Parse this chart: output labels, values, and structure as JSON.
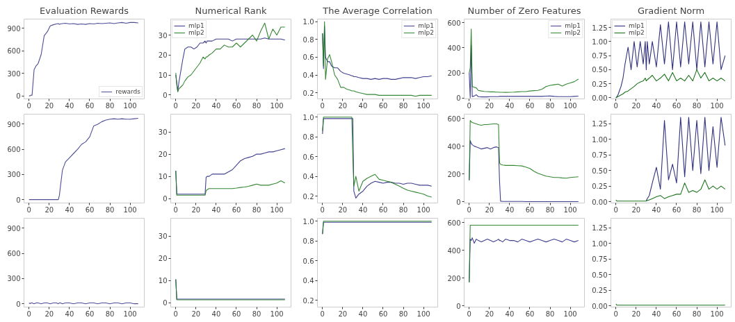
{
  "chart_data": [
    {
      "type": "line",
      "title": "Evaluation Rewards",
      "x": [
        0,
        1,
        2,
        3,
        5,
        7,
        9,
        12,
        15,
        18,
        21,
        24,
        27,
        29,
        30,
        31,
        33,
        36,
        40,
        44,
        48,
        52,
        56,
        60,
        64,
        68,
        72,
        76,
        80,
        84,
        88,
        92,
        96,
        100,
        104,
        108
      ],
      "xlim": [
        -5,
        114
      ],
      "xticks": [
        0,
        20,
        40,
        60,
        80,
        100
      ],
      "ylim": [
        -40,
        1020
      ],
      "yticks": [
        0,
        300,
        600,
        900
      ],
      "legend": "bottom right",
      "grid": false,
      "series": [
        {
          "name": "rewards",
          "color": "#3a3a8c",
          "values": [
            0,
            0,
            10,
            10,
            350,
            400,
            430,
            550,
            800,
            850,
            930,
            945,
            955,
            960,
            950,
            955,
            960,
            965,
            955,
            960,
            950,
            955,
            950,
            960,
            955,
            965,
            960,
            965,
            970,
            960,
            970,
            975,
            965,
            975,
            975,
            970
          ]
        }
      ]
    },
    {
      "type": "line",
      "title": "Numerical Rank",
      "x": [
        0,
        1,
        2,
        3,
        5,
        7,
        9,
        12,
        15,
        18,
        21,
        24,
        27,
        29,
        30,
        31,
        33,
        36,
        40,
        44,
        48,
        52,
        56,
        60,
        64,
        68,
        72,
        76,
        80,
        84,
        88,
        92,
        96,
        100,
        104,
        108
      ],
      "xlim": [
        -5,
        114
      ],
      "xticks": [
        0,
        20,
        40,
        60,
        80,
        100
      ],
      "ylim": [
        -2,
        38
      ],
      "yticks": [
        0,
        10,
        20,
        30
      ],
      "legend": "top left",
      "grid": false,
      "series": [
        {
          "name": "mlp1",
          "color": "#2b2b85",
          "values": [
            10,
            6,
            2,
            6,
            12,
            18,
            23,
            24,
            24,
            23,
            24,
            26,
            26,
            27,
            26,
            27,
            27,
            27,
            28,
            28,
            28,
            28,
            27,
            28,
            28,
            28,
            28,
            28,
            28,
            28,
            28.5,
            28,
            28,
            28,
            28,
            27.5
          ]
        },
        {
          "name": "mlp2",
          "color": "#1e7a1e",
          "values": [
            11,
            5,
            1.5,
            3,
            4,
            5,
            7,
            9,
            10,
            12,
            14,
            16,
            19,
            18,
            19,
            19,
            20,
            21,
            23,
            23,
            25,
            24,
            24,
            26,
            24,
            26,
            28,
            30,
            27,
            32,
            36,
            28,
            33,
            30,
            34,
            34
          ]
        }
      ]
    },
    {
      "type": "line",
      "title": "The Average Correlation",
      "x": [
        0,
        1,
        2,
        3,
        5,
        7,
        9,
        12,
        15,
        18,
        21,
        24,
        27,
        29,
        30,
        31,
        33,
        36,
        40,
        44,
        48,
        52,
        56,
        60,
        64,
        68,
        72,
        76,
        80,
        84,
        88,
        92,
        96,
        100,
        104,
        108
      ],
      "xlim": [
        -5,
        114
      ],
      "xticks": [
        0,
        20,
        40,
        60,
        80,
        100
      ],
      "ylim": [
        0.13,
        1.03
      ],
      "yticks": [
        {
          "value": 0.2,
          "label": "0.2"
        },
        {
          "value": 0.4,
          "label": "0.4"
        },
        {
          "value": 0.6,
          "label": "0.6"
        },
        {
          "value": 0.8,
          "label": "0.8"
        },
        {
          "value": 1,
          "label": "1.0"
        }
      ],
      "legend": "top right",
      "grid": false,
      "series": [
        {
          "name": "mlp1",
          "color": "#2b2b85",
          "values": [
            0.87,
            0.47,
            0.95,
            0.6,
            0.55,
            0.55,
            0.5,
            0.48,
            0.48,
            0.44,
            0.42,
            0.41,
            0.4,
            0.39,
            0.39,
            0.38,
            0.38,
            0.37,
            0.36,
            0.36,
            0.35,
            0.36,
            0.35,
            0.36,
            0.36,
            0.35,
            0.35,
            0.36,
            0.37,
            0.37,
            0.37,
            0.36,
            0.37,
            0.38,
            0.38,
            0.39
          ]
        },
        {
          "name": "mlp2",
          "color": "#1e7a1e",
          "values": [
            0.87,
            0.5,
            1.0,
            0.35,
            0.58,
            0.63,
            0.55,
            0.4,
            0.35,
            0.26,
            0.26,
            0.24,
            0.23,
            0.22,
            0.22,
            0.22,
            0.21,
            0.2,
            0.19,
            0.18,
            0.18,
            0.18,
            0.17,
            0.17,
            0.17,
            0.17,
            0.17,
            0.17,
            0.17,
            0.17,
            0.17,
            0.16,
            0.17,
            0.17,
            0.17,
            0.17
          ]
        }
      ]
    },
    {
      "type": "line",
      "title": "Number of Zero Features",
      "x": [
        0,
        1,
        2,
        3,
        5,
        7,
        9,
        12,
        15,
        18,
        21,
        24,
        27,
        29,
        30,
        31,
        33,
        36,
        40,
        44,
        48,
        52,
        56,
        60,
        64,
        68,
        72,
        76,
        80,
        84,
        88,
        92,
        96,
        100,
        104,
        108
      ],
      "xlim": [
        -5,
        114
      ],
      "xticks": [
        0,
        20,
        40,
        60,
        80,
        100
      ],
      "ylim": [
        -8,
        630
      ],
      "yticks": [
        0,
        200,
        400,
        600
      ],
      "legend": "top right",
      "grid": false,
      "series": [
        {
          "name": "mlp1",
          "color": "#2b2b85",
          "values": [
            200,
            0,
            420,
            10,
            15,
            25,
            10,
            8,
            8,
            8,
            10,
            10,
            10,
            10,
            12,
            12,
            12,
            12,
            12,
            12,
            12,
            12,
            12,
            12,
            12,
            12,
            12,
            14,
            15,
            12,
            10,
            10,
            10,
            10,
            12,
            14
          ]
        },
        {
          "name": "mlp2",
          "color": "#1e7a1e",
          "values": [
            200,
            240,
            550,
            90,
            85,
            80,
            60,
            55,
            52,
            50,
            48,
            48,
            46,
            46,
            45,
            45,
            45,
            44,
            45,
            46,
            48,
            50,
            50,
            55,
            58,
            60,
            70,
            90,
            100,
            105,
            110,
            95,
            110,
            120,
            130,
            150
          ]
        }
      ]
    },
    {
      "type": "line",
      "title": "Gradient Norm",
      "x": [
        0,
        1,
        2,
        3,
        5,
        7,
        9,
        12,
        15,
        18,
        21,
        24,
        27,
        29,
        30,
        31,
        33,
        36,
        40,
        44,
        48,
        52,
        56,
        60,
        64,
        68,
        72,
        76,
        80,
        84,
        88,
        92,
        96,
        100,
        104,
        108
      ],
      "xlim": [
        -5,
        114
      ],
      "xticks": [
        0,
        20,
        40,
        60,
        80,
        100
      ],
      "ylim": [
        -0.02,
        1.4
      ],
      "yticks": [
        {
          "value": 0,
          "label": "0.00"
        },
        {
          "value": 0.25,
          "label": "0.25"
        },
        {
          "value": 0.5,
          "label": "0.50"
        },
        {
          "value": 0.75,
          "label": "0.75"
        },
        {
          "value": 1,
          "label": "1.00"
        },
        {
          "value": 1.25,
          "label": "1.25"
        }
      ],
      "legend": "top left",
      "grid": false,
      "series": [
        {
          "name": "mlp1",
          "color": "#191970",
          "values": [
            0.0,
            0.02,
            0.05,
            0.1,
            0.2,
            0.35,
            0.6,
            0.9,
            0.5,
            1.0,
            0.55,
            1.0,
            0.6,
            1.0,
            0.5,
            1.0,
            0.6,
            1.0,
            0.55,
            1.3,
            0.6,
            1.35,
            0.5,
            1.35,
            0.55,
            1.35,
            0.6,
            1.35,
            0.5,
            1.35,
            0.55,
            1.35,
            0.6,
            1.35,
            0.5,
            0.75
          ]
        },
        {
          "name": "mlp2",
          "color": "#006400",
          "values": [
            0.0,
            0.01,
            0.02,
            0.03,
            0.05,
            0.07,
            0.1,
            0.12,
            0.16,
            0.2,
            0.25,
            0.28,
            0.3,
            0.35,
            0.3,
            0.32,
            0.35,
            0.4,
            0.3,
            0.35,
            0.42,
            0.3,
            0.45,
            0.3,
            0.35,
            0.3,
            0.4,
            0.3,
            0.5,
            0.35,
            0.45,
            0.3,
            0.35,
            0.3,
            0.35,
            0.3
          ]
        }
      ]
    },
    {
      "type": "line",
      "x": [
        0,
        1,
        2,
        3,
        5,
        7,
        9,
        12,
        15,
        18,
        21,
        24,
        27,
        29,
        30,
        31,
        33,
        36,
        40,
        44,
        48,
        52,
        56,
        60,
        64,
        68,
        72,
        76,
        80,
        84,
        88,
        92,
        96,
        100,
        104,
        108
      ],
      "xlim": [
        -5,
        114
      ],
      "xticks": [
        0,
        20,
        40,
        60,
        80,
        100
      ],
      "ylim": [
        -40,
        1020
      ],
      "yticks": [
        0,
        300,
        600,
        900
      ],
      "grid": false,
      "series": [
        {
          "color": "#3a3a8c",
          "values": [
            0,
            0,
            0,
            0,
            0,
            0,
            0,
            0,
            0,
            0,
            0,
            0,
            0,
            0,
            50,
            150,
            350,
            450,
            500,
            550,
            600,
            660,
            690,
            750,
            880,
            900,
            930,
            950,
            960,
            965,
            960,
            965,
            960,
            960,
            965,
            970
          ]
        }
      ]
    },
    {
      "type": "line",
      "x": [
        0,
        1,
        2,
        3,
        5,
        7,
        9,
        12,
        15,
        18,
        21,
        24,
        27,
        29,
        30,
        31,
        33,
        36,
        40,
        44,
        48,
        52,
        56,
        60,
        64,
        68,
        72,
        76,
        80,
        84,
        88,
        92,
        96,
        100,
        104,
        108
      ],
      "xlim": [
        -5,
        114
      ],
      "xticks": [
        0,
        20,
        40,
        60,
        80,
        100
      ],
      "ylim": [
        -2,
        38
      ],
      "yticks": [
        0,
        10,
        20,
        30
      ],
      "grid": false,
      "series": [
        {
          "color": "#2b2b85",
          "values": [
            12.5,
            2,
            2,
            2,
            2,
            2,
            2,
            2,
            2,
            2,
            2,
            2,
            2,
            2,
            9.5,
            10,
            10,
            11,
            11,
            11,
            11,
            12,
            13,
            15,
            17,
            18,
            18.5,
            19,
            20,
            20,
            20.5,
            21,
            21,
            21.5,
            22,
            22.5
          ]
        },
        {
          "color": "#1e7a1e",
          "values": [
            12.5,
            1.5,
            1.5,
            1.5,
            1.5,
            1.5,
            1.5,
            1.5,
            1.5,
            1.5,
            1.5,
            1.5,
            1.5,
            1.5,
            3.5,
            4,
            4.5,
            4.5,
            4.5,
            4.5,
            4.5,
            4.5,
            4.5,
            4.7,
            5,
            5.2,
            5.5,
            6,
            6.5,
            6,
            6,
            6,
            6.5,
            7,
            8,
            7
          ]
        }
      ]
    },
    {
      "type": "line",
      "x": [
        0,
        1,
        2,
        3,
        5,
        7,
        9,
        12,
        15,
        18,
        21,
        24,
        27,
        29,
        30,
        31,
        33,
        36,
        40,
        44,
        48,
        52,
        56,
        60,
        64,
        68,
        72,
        76,
        80,
        84,
        88,
        92,
        96,
        100,
        104,
        108
      ],
      "xlim": [
        -5,
        114
      ],
      "xticks": [
        0,
        20,
        40,
        60,
        80,
        100
      ],
      "ylim": [
        0.13,
        1.03
      ],
      "yticks": [
        {
          "value": 0.2,
          "label": "0.2"
        },
        {
          "value": 0.4,
          "label": "0.4"
        },
        {
          "value": 0.6,
          "label": "0.6"
        },
        {
          "value": 0.8,
          "label": "0.8"
        },
        {
          "value": 1,
          "label": "1.0"
        }
      ],
      "grid": false,
      "series": [
        {
          "color": "#2b2b85",
          "values": [
            0.83,
            0.985,
            0.985,
            0.985,
            0.985,
            0.985,
            0.985,
            0.985,
            0.985,
            0.985,
            0.985,
            0.985,
            0.985,
            0.985,
            0.985,
            0.25,
            0.18,
            0.22,
            0.25,
            0.3,
            0.33,
            0.35,
            0.34,
            0.33,
            0.34,
            0.34,
            0.33,
            0.33,
            0.32,
            0.33,
            0.33,
            0.32,
            0.31,
            0.31,
            0.31,
            0.3
          ]
        },
        {
          "color": "#1e7a1e",
          "values": [
            0.86,
            1.0,
            1.0,
            1.0,
            1.0,
            1.0,
            1.0,
            1.0,
            1.0,
            1.0,
            1.0,
            1.0,
            1.0,
            1.0,
            0.6,
            0.3,
            0.4,
            0.25,
            0.35,
            0.38,
            0.4,
            0.42,
            0.37,
            0.36,
            0.35,
            0.34,
            0.32,
            0.3,
            0.28,
            0.26,
            0.25,
            0.24,
            0.23,
            0.22,
            0.2,
            0.19
          ]
        }
      ]
    },
    {
      "type": "line",
      "x": [
        0,
        1,
        2,
        3,
        5,
        7,
        9,
        12,
        15,
        18,
        21,
        24,
        27,
        29,
        30,
        31,
        33,
        36,
        40,
        44,
        48,
        52,
        56,
        60,
        64,
        68,
        72,
        76,
        80,
        84,
        88,
        92,
        96,
        100,
        104,
        108
      ],
      "xlim": [
        -5,
        114
      ],
      "xticks": [
        0,
        20,
        40,
        60,
        80,
        100
      ],
      "ylim": [
        -8,
        630
      ],
      "yticks": [
        0,
        200,
        400,
        600
      ],
      "grid": false,
      "series": [
        {
          "color": "#2b2b85",
          "values": [
            155,
            440,
            420,
            410,
            400,
            395,
            390,
            380,
            385,
            390,
            380,
            390,
            395,
            390,
            150,
            5,
            3,
            3,
            3,
            3,
            3,
            3,
            2,
            2,
            2,
            2,
            2,
            2,
            2,
            2,
            2,
            2,
            2,
            2,
            2,
            2
          ]
        },
        {
          "color": "#1e7a1e",
          "values": [
            155,
            585,
            575,
            570,
            565,
            560,
            555,
            550,
            555,
            555,
            558,
            560,
            560,
            555,
            280,
            270,
            265,
            262,
            262,
            262,
            260,
            258,
            250,
            240,
            220,
            205,
            195,
            185,
            180,
            175,
            175,
            172,
            170,
            175,
            178,
            180
          ]
        }
      ]
    },
    {
      "type": "line",
      "x": [
        0,
        1,
        2,
        3,
        5,
        7,
        9,
        12,
        15,
        18,
        21,
        24,
        27,
        29,
        30,
        31,
        33,
        36,
        40,
        44,
        48,
        52,
        56,
        60,
        64,
        68,
        72,
        76,
        80,
        84,
        88,
        92,
        96,
        100,
        104,
        108
      ],
      "xlim": [
        -5,
        114
      ],
      "xticks": [
        0,
        20,
        40,
        60,
        80,
        100
      ],
      "ylim": [
        -0.02,
        1.4
      ],
      "yticks": [
        {
          "value": 0,
          "label": "0.00"
        },
        {
          "value": 0.25,
          "label": "0.25"
        },
        {
          "value": 0.5,
          "label": "0.50"
        },
        {
          "value": 0.75,
          "label": "0.75"
        },
        {
          "value": 1,
          "label": "1.00"
        },
        {
          "value": 1.25,
          "label": "1.25"
        }
      ],
      "grid": false,
      "series": [
        {
          "color": "#191970",
          "values": [
            null,
            null,
            null,
            null,
            null,
            null,
            null,
            null,
            null,
            null,
            null,
            null,
            null,
            null,
            0.02,
            0.05,
            0.1,
            0.3,
            0.55,
            0.2,
            1.3,
            0.35,
            0.6,
            0.3,
            1.35,
            0.4,
            1.35,
            0.5,
            1.3,
            0.45,
            1.35,
            0.5,
            1.2,
            0.55,
            1.35,
            0.9
          ]
        },
        {
          "color": "#006400",
          "values": [
            0.03,
            0.01,
            0.01,
            0.01,
            0.01,
            0.01,
            0.01,
            0.01,
            0.01,
            0.01,
            0.01,
            0.01,
            0.01,
            0.01,
            0.01,
            0.02,
            0.03,
            0.05,
            0.08,
            0.1,
            0.05,
            0.08,
            0.1,
            0.12,
            0.12,
            0.3,
            0.15,
            0.18,
            0.15,
            0.2,
            0.35,
            0.2,
            0.25,
            0.2,
            0.25,
            0.2
          ]
        }
      ]
    },
    {
      "type": "line",
      "x": [
        0,
        1,
        2,
        3,
        5,
        7,
        9,
        12,
        15,
        18,
        21,
        24,
        27,
        29,
        30,
        31,
        33,
        36,
        40,
        44,
        48,
        52,
        56,
        60,
        64,
        68,
        72,
        76,
        80,
        84,
        88,
        92,
        96,
        100,
        104,
        108
      ],
      "xlim": [
        -5,
        114
      ],
      "xticks": [
        0,
        20,
        40,
        60,
        80,
        100
      ],
      "ylim": [
        -40,
        1020
      ],
      "yticks": [
        0,
        300,
        600,
        900
      ],
      "grid": false,
      "series": [
        {
          "color": "#3a3a8c",
          "values": [
            10,
            0,
            10,
            10,
            0,
            10,
            10,
            0,
            10,
            10,
            0,
            10,
            10,
            0,
            10,
            10,
            0,
            10,
            10,
            0,
            10,
            10,
            0,
            10,
            10,
            0,
            10,
            10,
            0,
            10,
            10,
            0,
            10,
            10,
            0,
            0
          ]
        }
      ]
    },
    {
      "type": "line",
      "x": [
        0,
        1,
        2,
        3,
        5,
        7,
        9,
        12,
        15,
        18,
        21,
        24,
        27,
        29,
        30,
        31,
        33,
        36,
        40,
        44,
        48,
        52,
        56,
        60,
        64,
        68,
        72,
        76,
        80,
        84,
        88,
        92,
        96,
        100,
        104,
        108
      ],
      "xlim": [
        -5,
        114
      ],
      "xticks": [
        0,
        20,
        40,
        60,
        80,
        100
      ],
      "ylim": [
        -2,
        38
      ],
      "yticks": [
        0,
        10,
        20,
        30
      ],
      "grid": false,
      "series": [
        {
          "color": "#2b2b85",
          "values": [
            10.5,
            1.6,
            1.6,
            1.6,
            1.6,
            1.6,
            1.6,
            1.6,
            1.6,
            1.6,
            1.6,
            1.6,
            1.6,
            1.6,
            1.6,
            1.6,
            1.6,
            1.6,
            1.6,
            1.6,
            1.6,
            1.6,
            1.6,
            1.6,
            1.6,
            1.6,
            1.6,
            1.6,
            1.6,
            1.6,
            1.6,
            1.6,
            1.6,
            1.6,
            1.6,
            1.6
          ]
        },
        {
          "color": "#1e7a1e",
          "values": [
            10.5,
            1.3,
            1.3,
            1.3,
            1.3,
            1.3,
            1.3,
            1.3,
            1.3,
            1.3,
            1.3,
            1.3,
            1.3,
            1.3,
            1.3,
            1.3,
            1.3,
            1.3,
            1.3,
            1.3,
            1.3,
            1.3,
            1.3,
            1.3,
            1.3,
            1.3,
            1.3,
            1.3,
            1.3,
            1.3,
            1.3,
            1.3,
            1.3,
            1.3,
            1.3,
            1.3
          ]
        }
      ]
    },
    {
      "type": "line",
      "x": [
        0,
        1,
        2,
        3,
        5,
        7,
        9,
        12,
        15,
        18,
        21,
        24,
        27,
        29,
        30,
        31,
        33,
        36,
        40,
        44,
        48,
        52,
        56,
        60,
        64,
        68,
        72,
        76,
        80,
        84,
        88,
        92,
        96,
        100,
        104,
        108
      ],
      "xlim": [
        -5,
        114
      ],
      "xticks": [
        0,
        20,
        40,
        60,
        80,
        100
      ],
      "ylim": [
        0.13,
        1.03
      ],
      "yticks": [
        {
          "value": 0.2,
          "label": "0.2"
        },
        {
          "value": 0.4,
          "label": "0.4"
        },
        {
          "value": 0.6,
          "label": "0.6"
        },
        {
          "value": 0.8,
          "label": "0.8"
        },
        {
          "value": 1,
          "label": "1.0"
        }
      ],
      "grid": false,
      "series": [
        {
          "color": "#2b2b85",
          "values": [
            0.87,
            0.99,
            0.99,
            0.99,
            0.99,
            0.99,
            0.99,
            0.99,
            0.99,
            0.99,
            0.99,
            0.99,
            0.99,
            0.99,
            0.99,
            0.99,
            0.99,
            0.99,
            0.99,
            0.99,
            0.99,
            0.99,
            0.99,
            0.99,
            0.99,
            0.99,
            0.99,
            0.99,
            0.99,
            0.99,
            0.99,
            0.99,
            0.99,
            0.99,
            0.99,
            0.99
          ]
        },
        {
          "color": "#1e7a1e",
          "values": [
            0.87,
            1.0,
            1.0,
            1.0,
            1.0,
            1.0,
            1.0,
            1.0,
            1.0,
            1.0,
            1.0,
            1.0,
            1.0,
            1.0,
            1.0,
            1.0,
            1.0,
            1.0,
            1.0,
            1.0,
            1.0,
            1.0,
            1.0,
            1.0,
            1.0,
            1.0,
            1.0,
            1.0,
            1.0,
            1.0,
            1.0,
            1.0,
            1.0,
            1.0,
            1.0,
            1.0
          ]
        }
      ]
    },
    {
      "type": "line",
      "x": [
        0,
        1,
        2,
        3,
        5,
        7,
        9,
        12,
        15,
        18,
        21,
        24,
        27,
        29,
        30,
        31,
        33,
        36,
        40,
        44,
        48,
        52,
        56,
        60,
        64,
        68,
        72,
        76,
        80,
        84,
        88,
        92,
        96,
        100,
        104,
        108
      ],
      "xlim": [
        -5,
        114
      ],
      "xticks": [
        0,
        20,
        40,
        60,
        80,
        100
      ],
      "ylim": [
        -8,
        630
      ],
      "yticks": [
        0,
        200,
        400,
        600
      ],
      "grid": false,
      "series": [
        {
          "color": "#2b2b85",
          "values": [
            170,
            480,
            470,
            490,
            450,
            480,
            470,
            460,
            470,
            480,
            470,
            460,
            470,
            480,
            470,
            470,
            460,
            480,
            470,
            470,
            460,
            480,
            470,
            460,
            470,
            480,
            470,
            460,
            470,
            480,
            470,
            460,
            480,
            470,
            460,
            470
          ]
        },
        {
          "color": "#1e7a1e",
          "values": [
            170,
            580,
            580,
            580,
            580,
            580,
            580,
            580,
            580,
            580,
            580,
            580,
            580,
            580,
            580,
            580,
            580,
            580,
            580,
            580,
            580,
            580,
            580,
            580,
            580,
            580,
            580,
            580,
            580,
            580,
            580,
            580,
            580,
            580,
            580,
            580
          ]
        }
      ]
    },
    {
      "type": "line",
      "x": [
        0,
        1,
        2,
        3,
        5,
        7,
        9,
        12,
        15,
        18,
        21,
        24,
        27,
        29,
        30,
        31,
        33,
        36,
        40,
        44,
        48,
        52,
        56,
        60,
        64,
        68,
        72,
        76,
        80,
        84,
        88,
        92,
        96,
        100,
        104,
        108
      ],
      "xlim": [
        -5,
        114
      ],
      "xticks": [
        0,
        20,
        40,
        60,
        80,
        100
      ],
      "ylim": [
        -0.02,
        1.4
      ],
      "yticks": [
        {
          "value": 0,
          "label": "0.00"
        },
        {
          "value": 0.25,
          "label": "0.25"
        },
        {
          "value": 0.5,
          "label": "0.50"
        },
        {
          "value": 0.75,
          "label": "0.75"
        },
        {
          "value": 1,
          "label": "1.00"
        },
        {
          "value": 1.25,
          "label": "1.25"
        }
      ],
      "grid": false,
      "series": [
        {
          "color": "#006400",
          "values": [
            0.03,
            0.01,
            0.01,
            0.01,
            0.01,
            0.01,
            0.01,
            0.01,
            0.01,
            0.01,
            0.01,
            0.01,
            0.01,
            0.01,
            0.01,
            0.01,
            0.01,
            0.01,
            0.01,
            0.01,
            0.01,
            0.01,
            0.01,
            0.01,
            0.01,
            0.01,
            0.01,
            0.01,
            0.01,
            0.01,
            0.01,
            0.01,
            0.01,
            0.01,
            0.01,
            0.01
          ]
        }
      ]
    }
  ]
}
